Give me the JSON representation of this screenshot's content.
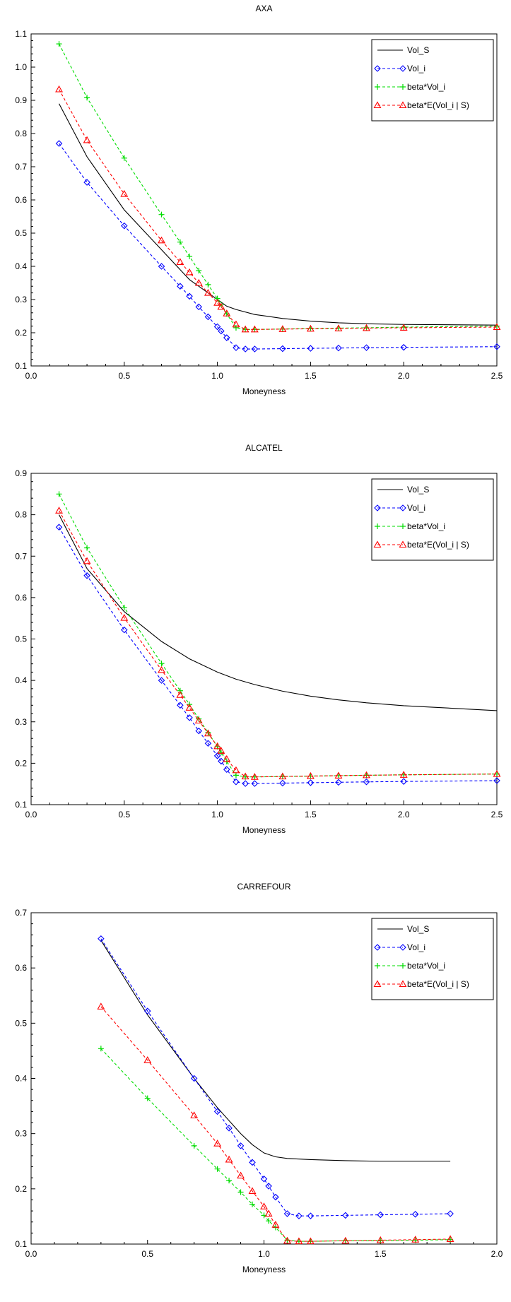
{
  "chart_data": [
    {
      "type": "line",
      "title": "AXA",
      "xlabel": "Moneyness",
      "ylabel": "",
      "xlim": [
        0.0,
        2.5
      ],
      "ylim": [
        0.1,
        1.1
      ],
      "xticks": [
        0.0,
        0.5,
        1.0,
        1.5,
        2.0,
        2.5
      ],
      "xtick_labels": [
        "0.0",
        "0.5",
        "1.0",
        "1.5",
        "2.0",
        "2.5"
      ],
      "yticks": [
        0.1,
        0.2,
        0.3,
        0.4,
        0.5,
        0.6,
        0.7,
        0.8,
        0.9,
        1.0,
        1.1
      ],
      "ytick_labels": [
        "0.1",
        "0.2",
        "0.3",
        "0.4",
        "0.5",
        "0.6",
        "0.7",
        "0.8",
        "0.9",
        "1.0",
        "1.1"
      ],
      "grid": false,
      "legend_position": "top-right",
      "series": [
        {
          "name": "Vol_S",
          "color": "#000000",
          "marker": "none",
          "dashed": false,
          "x": [
            0.15,
            0.3,
            0.5,
            0.7,
            0.8,
            0.85,
            0.9,
            0.95,
            1.0,
            1.05,
            1.1,
            1.2,
            1.35,
            1.5,
            1.65,
            1.8,
            2.0,
            2.5
          ],
          "y": [
            0.89,
            0.73,
            0.57,
            0.45,
            0.39,
            0.36,
            0.34,
            0.32,
            0.3,
            0.28,
            0.27,
            0.255,
            0.243,
            0.235,
            0.23,
            0.227,
            0.225,
            0.223
          ]
        },
        {
          "name": "Vol_i",
          "color": "#0000ff",
          "marker": "diamond",
          "dashed": true,
          "x": [
            0.15,
            0.3,
            0.5,
            0.7,
            0.8,
            0.85,
            0.9,
            0.95,
            1.0,
            1.02,
            1.05,
            1.1,
            1.15,
            1.2,
            1.35,
            1.5,
            1.65,
            1.8,
            2.0,
            2.5
          ],
          "y": [
            0.77,
            0.653,
            0.522,
            0.4,
            0.34,
            0.31,
            0.278,
            0.248,
            0.218,
            0.205,
            0.185,
            0.155,
            0.151,
            0.151,
            0.152,
            0.153,
            0.154,
            0.155,
            0.156,
            0.158
          ]
        },
        {
          "name": "beta*Vol_i",
          "color": "#00dd00",
          "marker": "plus",
          "dashed": true,
          "x": [
            0.15,
            0.3,
            0.5,
            0.7,
            0.8,
            0.85,
            0.9,
            0.95,
            1.0,
            1.02,
            1.05,
            1.1,
            1.15,
            1.2,
            1.35,
            1.5,
            1.65,
            1.8,
            2.0,
            2.5
          ],
          "y": [
            1.07,
            0.908,
            0.726,
            0.556,
            0.473,
            0.43,
            0.387,
            0.345,
            0.303,
            0.285,
            0.257,
            0.215,
            0.21,
            0.21,
            0.211,
            0.213,
            0.214,
            0.215,
            0.217,
            0.22
          ]
        },
        {
          "name": "beta*E(Vol_i | S)",
          "color": "#ff0000",
          "marker": "triangle",
          "dashed": true,
          "x": [
            0.15,
            0.3,
            0.5,
            0.7,
            0.8,
            0.85,
            0.9,
            0.95,
            1.0,
            1.02,
            1.05,
            1.1,
            1.15,
            1.2,
            1.35,
            1.5,
            1.65,
            1.8,
            2.0,
            2.5
          ],
          "y": [
            0.933,
            0.78,
            0.618,
            0.478,
            0.413,
            0.382,
            0.35,
            0.32,
            0.29,
            0.278,
            0.258,
            0.225,
            0.21,
            0.21,
            0.211,
            0.212,
            0.213,
            0.214,
            0.215,
            0.217
          ]
        }
      ]
    },
    {
      "type": "line",
      "title": "ALCATEL",
      "xlabel": "Moneyness",
      "ylabel": "",
      "xlim": [
        0.0,
        2.5
      ],
      "ylim": [
        0.1,
        0.9
      ],
      "xticks": [
        0.0,
        0.5,
        1.0,
        1.5,
        2.0,
        2.5
      ],
      "xtick_labels": [
        "0.0",
        "0.5",
        "1.0",
        "1.5",
        "2.0",
        "2.5"
      ],
      "yticks": [
        0.1,
        0.2,
        0.3,
        0.4,
        0.5,
        0.6,
        0.7,
        0.8,
        0.9
      ],
      "ytick_labels": [
        "0.1",
        "0.2",
        "0.3",
        "0.4",
        "0.5",
        "0.6",
        "0.7",
        "0.8",
        "0.9"
      ],
      "grid": false,
      "legend_position": "top-right",
      "series": [
        {
          "name": "Vol_S",
          "color": "#000000",
          "marker": "none",
          "dashed": false,
          "x": [
            0.15,
            0.3,
            0.5,
            0.7,
            0.85,
            1.0,
            1.1,
            1.2,
            1.35,
            1.5,
            1.65,
            1.8,
            2.0,
            2.5
          ],
          "y": [
            0.8,
            0.67,
            0.566,
            0.494,
            0.452,
            0.42,
            0.403,
            0.39,
            0.374,
            0.362,
            0.353,
            0.346,
            0.339,
            0.327
          ]
        },
        {
          "name": "Vol_i",
          "color": "#0000ff",
          "marker": "diamond",
          "dashed": true,
          "x": [
            0.15,
            0.3,
            0.5,
            0.7,
            0.8,
            0.85,
            0.9,
            0.95,
            1.0,
            1.02,
            1.05,
            1.1,
            1.15,
            1.2,
            1.35,
            1.5,
            1.65,
            1.8,
            2.0,
            2.5
          ],
          "y": [
            0.77,
            0.653,
            0.522,
            0.4,
            0.34,
            0.31,
            0.278,
            0.248,
            0.218,
            0.205,
            0.185,
            0.155,
            0.151,
            0.151,
            0.152,
            0.153,
            0.154,
            0.155,
            0.156,
            0.158
          ]
        },
        {
          "name": "beta*Vol_i",
          "color": "#00dd00",
          "marker": "plus",
          "dashed": true,
          "x": [
            0.15,
            0.3,
            0.5,
            0.7,
            0.8,
            0.85,
            0.9,
            0.95,
            1.0,
            1.02,
            1.05,
            1.1,
            1.15,
            1.2,
            1.35,
            1.5,
            1.65,
            1.8,
            2.0,
            2.5
          ],
          "y": [
            0.85,
            0.72,
            0.576,
            0.441,
            0.375,
            0.342,
            0.307,
            0.274,
            0.24,
            0.226,
            0.204,
            0.171,
            0.167,
            0.167,
            0.168,
            0.169,
            0.17,
            0.171,
            0.172,
            0.174
          ]
        },
        {
          "name": "beta*E(Vol_i | S)",
          "color": "#ff0000",
          "marker": "triangle",
          "dashed": true,
          "x": [
            0.15,
            0.3,
            0.5,
            0.7,
            0.8,
            0.85,
            0.9,
            0.95,
            1.0,
            1.02,
            1.05,
            1.1,
            1.15,
            1.2,
            1.35,
            1.5,
            1.65,
            1.8,
            2.0,
            2.5
          ],
          "y": [
            0.81,
            0.688,
            0.551,
            0.425,
            0.365,
            0.334,
            0.303,
            0.272,
            0.241,
            0.23,
            0.21,
            0.183,
            0.168,
            0.167,
            0.168,
            0.169,
            0.17,
            0.171,
            0.172,
            0.174
          ]
        }
      ]
    },
    {
      "type": "line",
      "title": "CARREFOUR",
      "xlabel": "Moneyness",
      "ylabel": "",
      "xlim": [
        0.0,
        2.0
      ],
      "ylim": [
        0.1,
        0.7
      ],
      "xticks": [
        0.0,
        0.5,
        1.0,
        1.5,
        2.0
      ],
      "xtick_labels": [
        "0.0",
        "0.5",
        "1.0",
        "1.5",
        "2.0"
      ],
      "yticks": [
        0.1,
        0.2,
        0.3,
        0.4,
        0.5,
        0.6,
        0.7
      ],
      "ytick_labels": [
        "0.1",
        "0.2",
        "0.3",
        "0.4",
        "0.5",
        "0.6",
        "0.7"
      ],
      "grid": false,
      "legend_position": "top-right",
      "series": [
        {
          "name": "Vol_S",
          "color": "#000000",
          "marker": "none",
          "dashed": false,
          "x": [
            0.3,
            0.5,
            0.7,
            0.8,
            0.9,
            0.95,
            1.0,
            1.05,
            1.1,
            1.2,
            1.35,
            1.5,
            1.65,
            1.8
          ],
          "y": [
            0.65,
            0.515,
            0.4,
            0.347,
            0.3,
            0.28,
            0.265,
            0.258,
            0.255,
            0.253,
            0.251,
            0.25,
            0.25,
            0.25
          ]
        },
        {
          "name": "Vol_i",
          "color": "#0000ff",
          "marker": "diamond",
          "dashed": true,
          "x": [
            0.3,
            0.5,
            0.7,
            0.8,
            0.85,
            0.9,
            0.95,
            1.0,
            1.02,
            1.05,
            1.1,
            1.15,
            1.2,
            1.35,
            1.5,
            1.65,
            1.8
          ],
          "y": [
            0.653,
            0.522,
            0.4,
            0.34,
            0.31,
            0.278,
            0.248,
            0.218,
            0.205,
            0.185,
            0.155,
            0.151,
            0.151,
            0.152,
            0.153,
            0.154,
            0.155
          ]
        },
        {
          "name": "beta*Vol_i",
          "color": "#00dd00",
          "marker": "plus",
          "dashed": true,
          "x": [
            0.3,
            0.5,
            0.7,
            0.8,
            0.85,
            0.9,
            0.95,
            1.0,
            1.02,
            1.05,
            1.1,
            1.15,
            1.2,
            1.35,
            1.5,
            1.65,
            1.8
          ],
          "y": [
            0.454,
            0.364,
            0.278,
            0.236,
            0.215,
            0.194,
            0.172,
            0.152,
            0.142,
            0.13,
            0.107,
            0.105,
            0.105,
            0.106,
            0.106,
            0.107,
            0.108
          ]
        },
        {
          "name": "beta*E(Vol_i | S)",
          "color": "#ff0000",
          "marker": "triangle",
          "dashed": true,
          "x": [
            0.3,
            0.5,
            0.7,
            0.8,
            0.85,
            0.9,
            0.95,
            1.0,
            1.02,
            1.05,
            1.1,
            1.15,
            1.2,
            1.35,
            1.5,
            1.65,
            1.8
          ],
          "y": [
            0.53,
            0.433,
            0.333,
            0.282,
            0.253,
            0.224,
            0.196,
            0.168,
            0.155,
            0.135,
            0.106,
            0.105,
            0.105,
            0.106,
            0.107,
            0.108,
            0.109
          ]
        }
      ]
    }
  ]
}
